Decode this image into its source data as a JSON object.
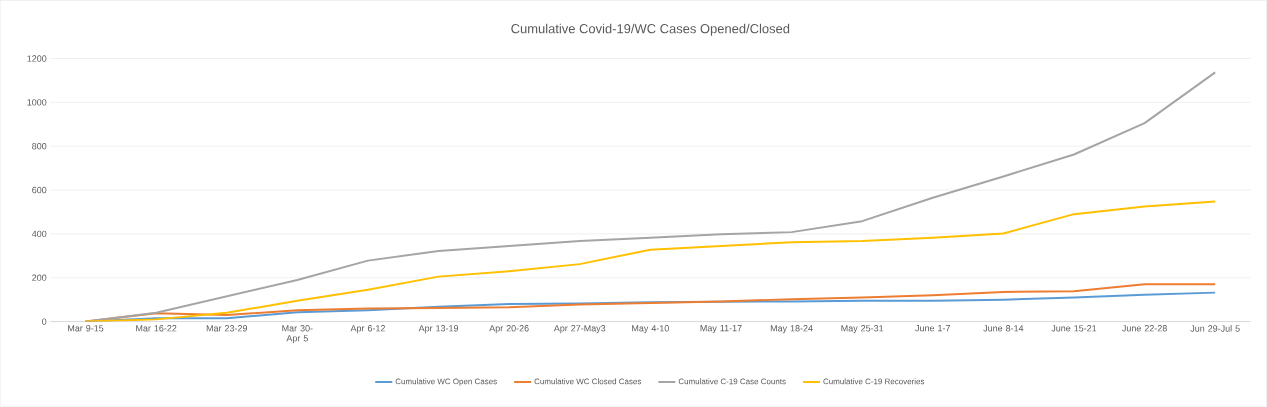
{
  "chart_data": {
    "type": "line",
    "title": "Cumulative Covid-19/WC Cases Opened/Closed",
    "categories": [
      "Mar 9-15",
      "Mar 16-22",
      "Mar 23-29",
      "Mar 30-Apr 5",
      "Apr 6-12",
      "Apr 13-19",
      "Apr 20-26",
      "Apr 27-May3",
      "May 4-10",
      "May 11-17",
      "May 18-24",
      "May 25-31",
      "June 1-7",
      "June 8-14",
      "June 15-21",
      "June 22-28",
      "Jun 29-Jul 5"
    ],
    "series": [
      {
        "name": "Cumulative WC Open Cases",
        "color": "#5b9bd5",
        "values": [
          0,
          15,
          15,
          42,
          52,
          68,
          80,
          82,
          88,
          90,
          92,
          95,
          95,
          100,
          110,
          122,
          132
        ]
      },
      {
        "name": "Cumulative WC Closed Cases",
        "color": "#ed7d31",
        "values": [
          0,
          38,
          30,
          52,
          60,
          62,
          65,
          78,
          85,
          92,
          102,
          110,
          120,
          135,
          138,
          170,
          170
        ]
      },
      {
        "name": "Cumulative C-19 Case Counts",
        "color": "#a5a5a5",
        "values": [
          0,
          40,
          115,
          190,
          278,
          322,
          345,
          368,
          382,
          398,
          408,
          458,
          565,
          662,
          762,
          905,
          1137
        ]
      },
      {
        "name": "Cumulative C-19 Recoveries",
        "color": "#ffc000",
        "values": [
          0,
          10,
          40,
          95,
          145,
          205,
          230,
          262,
          328,
          345,
          362,
          368,
          382,
          402,
          490,
          525,
          548
        ]
      }
    ],
    "ylim": [
      0,
      1200
    ],
    "yticks": [
      0,
      200,
      400,
      600,
      800,
      1000,
      1200
    ],
    "grid": "y",
    "legend": "bottom",
    "marker": "none",
    "line_style": "solid"
  }
}
